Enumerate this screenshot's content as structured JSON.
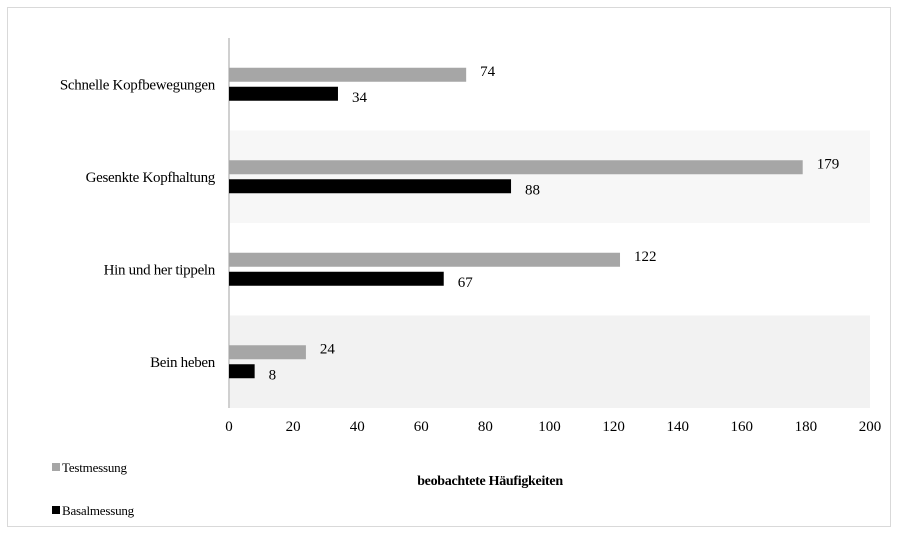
{
  "chart_data": {
    "type": "bar",
    "orientation": "horizontal",
    "categories": [
      "Schnelle Kopfbewegungen",
      "Gesenkte Kopfhaltung",
      "Hin und her tippeln",
      "Bein heben"
    ],
    "series": [
      {
        "name": "Testmessung",
        "values": [
          74,
          179,
          122,
          24
        ],
        "color": "#a6a6a6"
      },
      {
        "name": "Basalmessung",
        "values": [
          34,
          88,
          67,
          8
        ],
        "color": "#000000"
      }
    ],
    "xlabel": "beobachtete Häufigkeiten",
    "xlim": [
      0,
      200
    ],
    "xticks": [
      0,
      20,
      40,
      60,
      80,
      100,
      120,
      140,
      160,
      180,
      200
    ],
    "legend_position": "bottom-left",
    "grid": false
  }
}
